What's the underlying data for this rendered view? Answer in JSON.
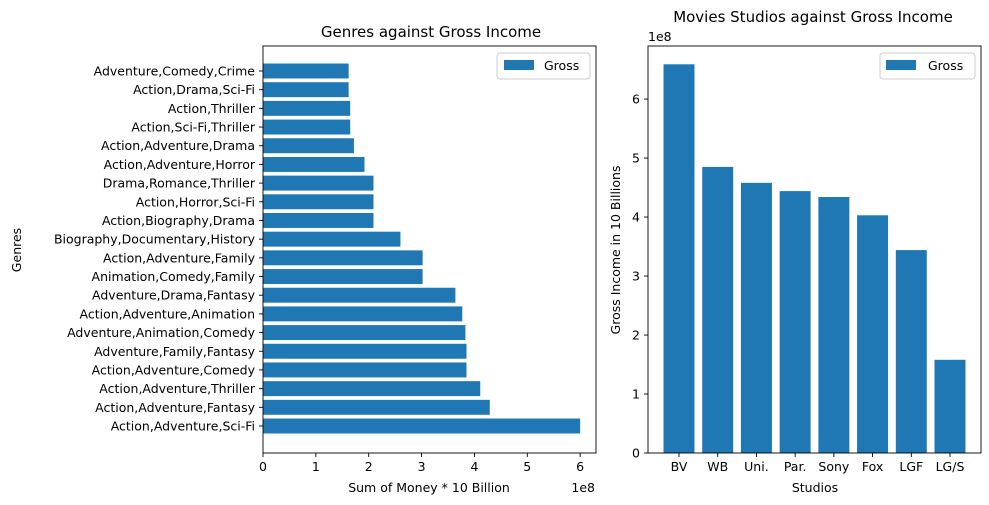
{
  "colors": {
    "bar": "#1f77b4",
    "axis": "#000000",
    "legend_border": "#cccccc"
  },
  "chart_data": [
    {
      "type": "bar",
      "orientation": "horizontal",
      "title": "Genres against Gross Income",
      "xlabel": "Sum of Money   * 10 Billion",
      "ylabel": "Genres",
      "x_offset_label": "1e8",
      "xlim": [
        0,
        6.3
      ],
      "xticks": [
        0,
        1,
        2,
        3,
        4,
        5,
        6
      ],
      "xtick_labels": [
        "0",
        "1",
        "2",
        "3",
        "4",
        "5",
        "6"
      ],
      "legend": {
        "position": "top-right",
        "labels": [
          "Gross"
        ]
      },
      "grid": false,
      "categories": [
        "Action,Adventure,Sci-Fi",
        "Action,Adventure,Fantasy",
        "Action,Adventure,Thriller",
        "Action,Adventure,Comedy",
        "Adventure,Family,Fantasy",
        "Adventure,Animation,Comedy",
        "Action,Adventure,Animation",
        "Adventure,Drama,Fantasy",
        "Animation,Comedy,Family",
        "Action,Adventure,Family",
        "Biography,Documentary,History",
        "Action,Biography,Drama",
        "Action,Horror,Sci-Fi",
        "Drama,Romance,Thriller",
        "Action,Adventure,Horror",
        "Action,Adventure,Drama",
        "Action,Sci-Fi,Thriller",
        "Action,Thriller",
        "Action,Drama,Sci-Fi",
        "Adventure,Comedy,Crime"
      ],
      "series": [
        {
          "name": "Gross",
          "values": [
            6.0,
            4.29,
            4.11,
            3.85,
            3.85,
            3.83,
            3.77,
            3.64,
            3.02,
            3.02,
            2.6,
            2.09,
            2.09,
            2.09,
            1.92,
            1.72,
            1.65,
            1.65,
            1.62,
            1.62
          ]
        }
      ]
    },
    {
      "type": "bar",
      "orientation": "vertical",
      "title": "Movies Studios against Gross Income",
      "xlabel": "Studios",
      "ylabel": "Gross Income  in 10 Billions",
      "y_offset_label": "1e8",
      "ylim": [
        0,
        6.9
      ],
      "yticks": [
        0,
        1,
        2,
        3,
        4,
        5,
        6
      ],
      "ytick_labels": [
        "0",
        "1",
        "2",
        "3",
        "4",
        "5",
        "6"
      ],
      "legend": {
        "position": "top-right",
        "labels": [
          "Gross"
        ]
      },
      "grid": false,
      "categories": [
        "BV",
        "WB",
        "Uni.",
        "Par.",
        "Sony",
        "Fox",
        "LGF",
        "LG/S"
      ],
      "series": [
        {
          "name": "Gross",
          "values": [
            6.59,
            4.85,
            4.58,
            4.44,
            4.34,
            4.03,
            3.44,
            1.58
          ]
        }
      ]
    }
  ]
}
